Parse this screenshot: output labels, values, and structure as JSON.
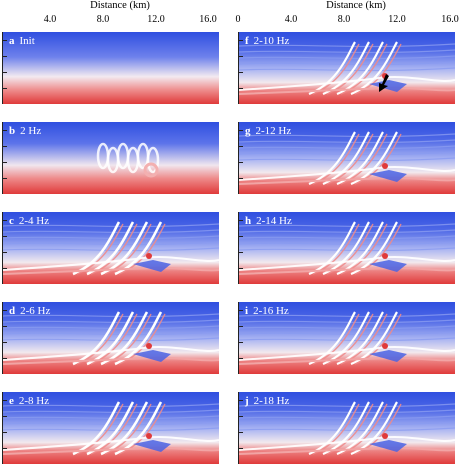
{
  "header": {
    "left": {
      "title": "Distance (km)",
      "ticks": [
        "4.0",
        "8.0",
        "12.0",
        "16.0"
      ]
    },
    "right": {
      "title": "Distance (km)",
      "ticks": [
        "0",
        "4.0",
        "8.0",
        "12.0",
        "16.0"
      ]
    }
  },
  "panels": [
    {
      "letter": "a",
      "label": "Init",
      "stage": "init"
    },
    {
      "letter": "b",
      "label": "2 Hz",
      "stage": "2hz"
    },
    {
      "letter": "c",
      "label": "2-4 Hz",
      "stage": "mid"
    },
    {
      "letter": "d",
      "label": "2-6 Hz",
      "stage": "mid"
    },
    {
      "letter": "e",
      "label": "2-8 Hz",
      "stage": "mid"
    },
    {
      "letter": "f",
      "label": "2-10 Hz",
      "stage": "fine",
      "arrow": true
    },
    {
      "letter": "g",
      "label": "2-12 Hz",
      "stage": "fine"
    },
    {
      "letter": "h",
      "label": "2-14 Hz",
      "stage": "fine"
    },
    {
      "letter": "i",
      "label": "2-16 Hz",
      "stage": "fine"
    },
    {
      "letter": "j",
      "label": "2-18 Hz",
      "stage": "fine"
    }
  ],
  "colors": {
    "blue": "#2f4fe0",
    "red": "#e03a3a",
    "white": "#ffffff"
  }
}
